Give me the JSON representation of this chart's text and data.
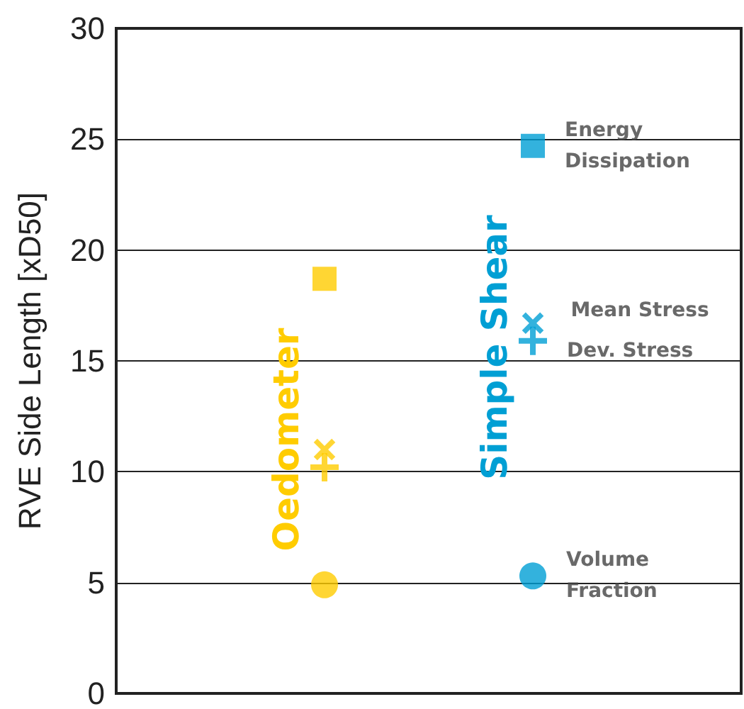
{
  "chart_data": {
    "type": "scatter",
    "ylabel": "RVE Side Length [xD50]",
    "categories": [
      "Oedometer",
      "Simple Shear"
    ],
    "series": [
      {
        "name": "Energy Dissipation",
        "marker": "square",
        "colors": [
          "#ffcc00",
          "#009fd4"
        ],
        "values": [
          18.7,
          24.7
        ]
      },
      {
        "name": "Mean Stress",
        "marker": "cross",
        "colors": [
          "#ffcc00",
          "#009fd4"
        ],
        "values": [
          11.0,
          16.7
        ]
      },
      {
        "name": "Dev. Stress",
        "marker": "plus",
        "colors": [
          "#ffcc00",
          "#009fd4"
        ],
        "values": [
          10.2,
          15.9
        ]
      },
      {
        "name": "Volume Fraction",
        "marker": "circle",
        "colors": [
          "#ffcc00",
          "#009fd4"
        ],
        "values": [
          4.9,
          5.3
        ]
      }
    ],
    "ylim": [
      0,
      30
    ],
    "yticks": [
      0,
      5,
      10,
      15,
      20,
      25,
      30
    ],
    "grid": "y",
    "tick_labels": "y"
  }
}
